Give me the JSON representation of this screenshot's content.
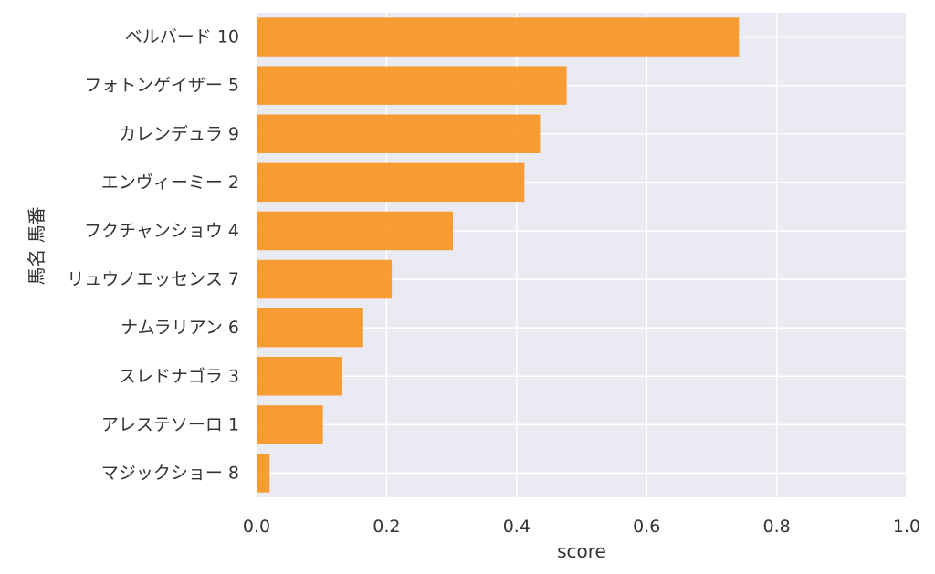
{
  "chart_data": {
    "type": "bar",
    "orientation": "horizontal",
    "categories": [
      "ベルバード 10",
      "フォトンゲイザー 5",
      "カレンデュラ 9",
      "エンヴィーミー 2",
      "フクチャンショウ 4",
      "リュウノエッセンス 7",
      "ナムラリアン 6",
      "スレドナゴラ 3",
      "アレステソーロ 1",
      "マジックショー 8"
    ],
    "values": [
      0.742,
      0.477,
      0.436,
      0.412,
      0.302,
      0.208,
      0.164,
      0.132,
      0.102,
      0.02
    ],
    "xlabel": "score",
    "ylabel": "馬名 馬番",
    "xlim": [
      0,
      1.0
    ],
    "xticks": [
      "0.0",
      "0.2",
      "0.4",
      "0.6",
      "0.8",
      "1.0"
    ],
    "grid": true,
    "bar_color": "#f7931e",
    "background_color": "#eaeaf2",
    "grid_color": "#ffffff"
  }
}
